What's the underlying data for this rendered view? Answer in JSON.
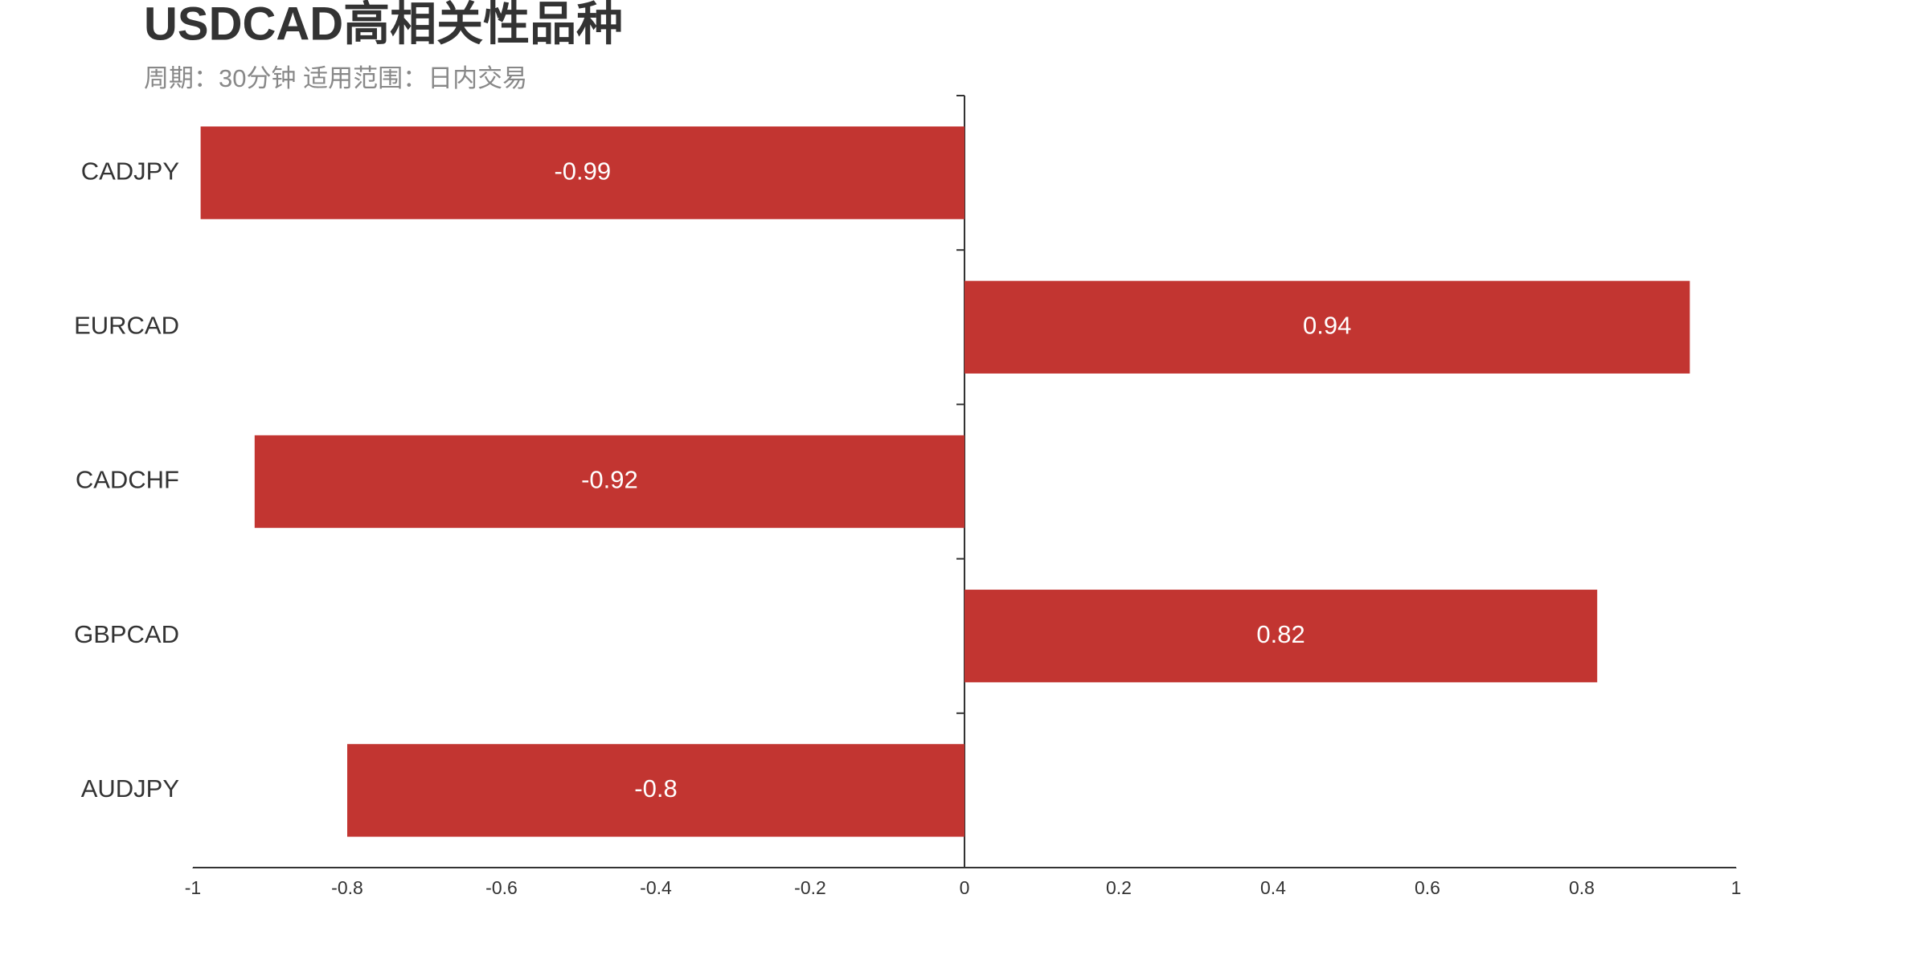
{
  "chart_data": {
    "type": "hbar",
    "title": "USDCAD高相关性品种",
    "subtitle": "周期：30分钟 适用范围：日内交易",
    "categories": [
      "CADJPY",
      "EURCAD",
      "CADCHF",
      "GBPCAD",
      "AUDJPY"
    ],
    "values": [
      -0.99,
      0.94,
      -0.92,
      0.82,
      -0.8
    ],
    "color": "#c23531",
    "xlim": [
      -1,
      1
    ],
    "xticks": [
      -1,
      -0.8,
      -0.6,
      -0.4,
      -0.2,
      0,
      0.2,
      0.4,
      0.6,
      0.8,
      1
    ]
  }
}
